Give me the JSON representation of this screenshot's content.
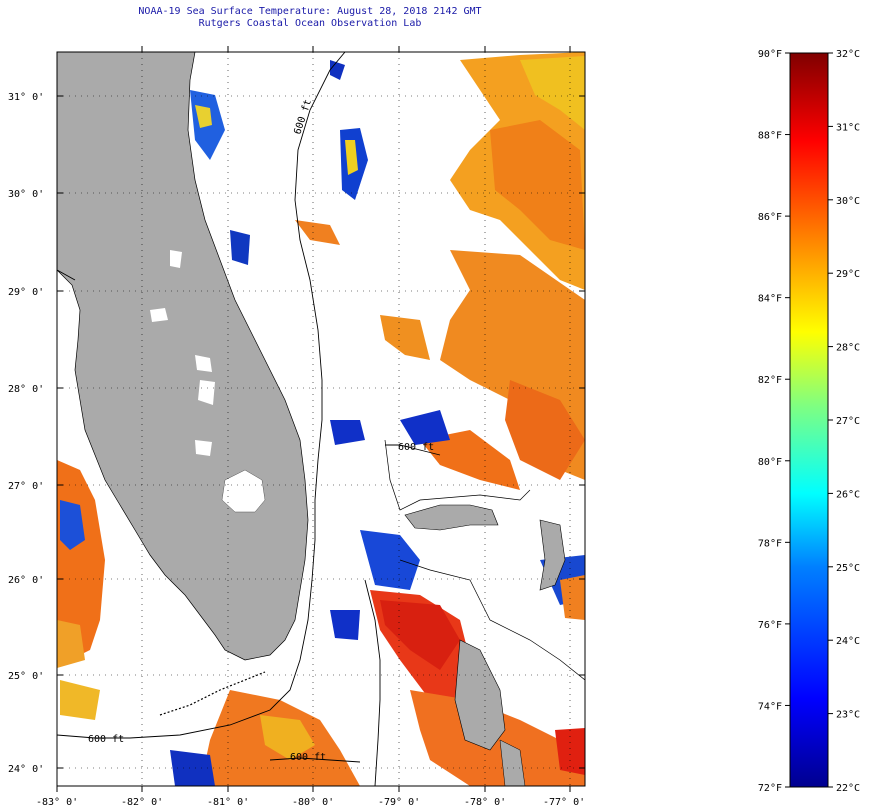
{
  "title": {
    "line1": "NOAA-19 Sea Surface Temperature:  August 28, 2018 2142 GMT",
    "line2": "Rutgers Coastal Ocean Observation Lab"
  },
  "map": {
    "lat_labels": [
      "31° 0'",
      "30° 0'",
      "29° 0'",
      "28° 0'",
      "27° 0'",
      "26° 0'",
      "25° 0'",
      "24° 0'"
    ],
    "lon_labels": [
      "-83° 0'",
      "-82° 0'",
      "-81° 0'",
      "-80° 0'",
      "-79° 0'",
      "-78° 0'",
      "-77° 0'"
    ],
    "isobath_labels": [
      "600 ft",
      "600 ft",
      "600 ft",
      "600 ft"
    ],
    "colors": {
      "land": "#aaaaaa",
      "ocean_nodata": "#ffffff",
      "grid": "#000000"
    }
  },
  "colorbar": {
    "f_labels": [
      "90°F",
      "88°F",
      "86°F",
      "84°F",
      "82°F",
      "80°F",
      "78°F",
      "76°F",
      "74°F",
      "72°F"
    ],
    "c_labels": [
      "32°C",
      "31°C",
      "30°C",
      "29°C",
      "28°C",
      "27°C",
      "26°C",
      "25°C",
      "24°C",
      "23°C",
      "22°C"
    ],
    "range_f": [
      72,
      90
    ],
    "range_c": [
      22,
      32
    ]
  }
}
